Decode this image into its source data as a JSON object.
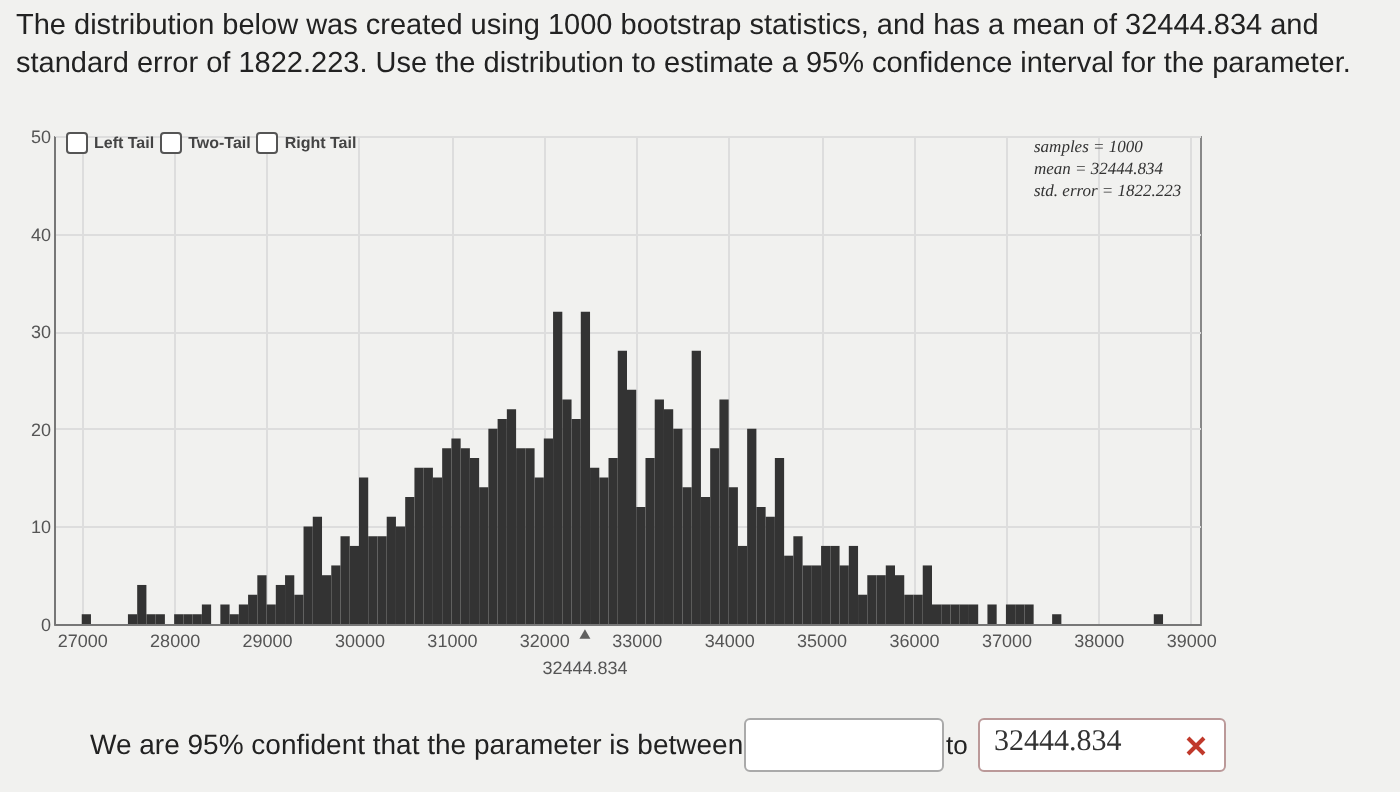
{
  "chart_data": {
    "type": "histogram",
    "title": "The distribution below was created using 1000 bootstrap statistics, and has a mean of 32444.834 and standard error of 1822.223. Use the distribution to estimate a 95% confidence interval for the parameter.",
    "bins": [
      27000,
      27100,
      27200,
      27300,
      27400,
      27500,
      27600,
      27700,
      27800,
      27900,
      28000,
      28100,
      28200,
      28300,
      28400,
      28500,
      28600,
      28700,
      28800,
      28900,
      29000,
      29100,
      29200,
      29300,
      29400,
      29500,
      29600,
      29700,
      29800,
      29900,
      30000,
      30100,
      30200,
      30300,
      30400,
      30500,
      30600,
      30700,
      30800,
      30900,
      31000,
      31100,
      31200,
      31300,
      31400,
      31500,
      31600,
      31700,
      31800,
      31900,
      32000,
      32100,
      32200,
      32300,
      32400,
      32500,
      32600,
      32700,
      32800,
      32900,
      33000,
      33100,
      33200,
      33300,
      33400,
      33500,
      33600,
      33700,
      33800,
      33900,
      34000,
      34100,
      34200,
      34300,
      34400,
      34500,
      34600,
      34700,
      34800,
      34900,
      35000,
      35100,
      35200,
      35300,
      35400,
      35500,
      35600,
      35700,
      35800,
      35900,
      36000,
      36100,
      36200,
      36300,
      36400,
      36500,
      36600,
      36700,
      36800,
      36900,
      37000,
      37100,
      37200,
      37300,
      37400,
      37500,
      37600,
      37700,
      37800,
      37900,
      38000,
      38100,
      38200,
      38300,
      38400,
      38500,
      38600,
      38700
    ],
    "values": [
      1,
      0,
      0,
      0,
      0,
      1,
      4,
      1,
      1,
      0,
      1,
      1,
      1,
      2,
      0,
      2,
      1,
      2,
      3,
      5,
      2,
      4,
      5,
      3,
      10,
      11,
      5,
      6,
      9,
      8,
      15,
      9,
      9,
      11,
      10,
      13,
      16,
      16,
      15,
      18,
      19,
      18,
      17,
      14,
      20,
      21,
      22,
      18,
      18,
      15,
      19,
      32,
      23,
      21,
      32,
      16,
      15,
      17,
      28,
      24,
      12,
      17,
      23,
      22,
      20,
      14,
      28,
      13,
      18,
      23,
      14,
      8,
      20,
      12,
      11,
      17,
      7,
      9,
      6,
      6,
      8,
      8,
      6,
      8,
      3,
      5,
      5,
      6,
      5,
      3,
      3,
      6,
      2,
      2,
      2,
      2,
      2,
      0,
      2,
      0,
      2,
      2,
      2,
      0,
      0,
      1,
      0,
      0,
      0,
      0,
      0,
      0,
      0,
      0,
      0,
      0,
      1
    ],
    "color": "#333333",
    "xlim": [
      26700,
      39100
    ],
    "xticks": [
      27000,
      28000,
      29000,
      30000,
      31000,
      32000,
      33000,
      34000,
      35000,
      36000,
      37000,
      38000,
      39000
    ],
    "ylim": [
      0,
      50
    ],
    "yticks": [
      0,
      10,
      20,
      30,
      40,
      50
    ],
    "grid": true,
    "annotations": [
      "Left Tail",
      "Two-Tail",
      "Right Tail",
      "samples = 1000",
      "mean = 32444.834",
      "std. error = 1822.223",
      {
        "text": "32444.834",
        "x": 32444.834,
        "y": 0
      },
      "We are 95% confident that the parameter is between",
      "to",
      "32444.834"
    ]
  }
}
